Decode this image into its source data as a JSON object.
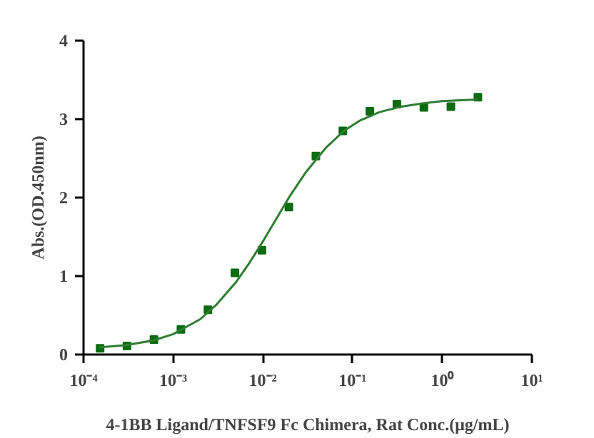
{
  "chart_data": {
    "type": "scatter",
    "xlabel": "4-1BB Ligand/TNFSF9 Fc Chimera, Rat Conc.(μg/mL)",
    "ylabel": "Abs.(OD.450nm)",
    "log": "x",
    "xlim": [
      0.0001,
      10
    ],
    "ylim": [
      0,
      4
    ],
    "xticks": [
      {
        "value": 0.0001,
        "label": "10⁻⁴"
      },
      {
        "value": 0.001,
        "label": "10⁻³"
      },
      {
        "value": 0.01,
        "label": "10⁻²"
      },
      {
        "value": 0.1,
        "label": "10⁻¹"
      },
      {
        "value": 1,
        "label": "10⁰"
      },
      {
        "value": 10,
        "label": "10¹"
      }
    ],
    "yticks": [
      0,
      1,
      2,
      3,
      4
    ],
    "series": [
      {
        "marker": "square",
        "color": "#0b6b12",
        "x": [
          0.000153,
          0.000305,
          0.00061,
          0.00122,
          0.00244,
          0.00488,
          0.00977,
          0.0195,
          0.039,
          0.078,
          0.156,
          0.3125,
          0.625,
          1.25,
          2.5
        ],
        "values": [
          0.08,
          0.11,
          0.19,
          0.32,
          0.57,
          1.04,
          1.33,
          1.88,
          2.53,
          2.85,
          3.1,
          3.19,
          3.15,
          3.16,
          3.28
        ]
      },
      {
        "type": "line",
        "marker": "none",
        "color": "#2e7d32",
        "x": [
          0.00015,
          0.0003,
          0.0006,
          0.001,
          0.002,
          0.003,
          0.005,
          0.007,
          0.01,
          0.015,
          0.02,
          0.03,
          0.05,
          0.08,
          0.12,
          0.2,
          0.35,
          0.6,
          1.0,
          1.6,
          2.5
        ],
        "values": [
          0.09,
          0.12,
          0.18,
          0.26,
          0.45,
          0.63,
          0.92,
          1.16,
          1.44,
          1.78,
          2.02,
          2.32,
          2.63,
          2.85,
          2.98,
          3.09,
          3.16,
          3.2,
          3.23,
          3.24,
          3.25
        ]
      }
    ]
  }
}
